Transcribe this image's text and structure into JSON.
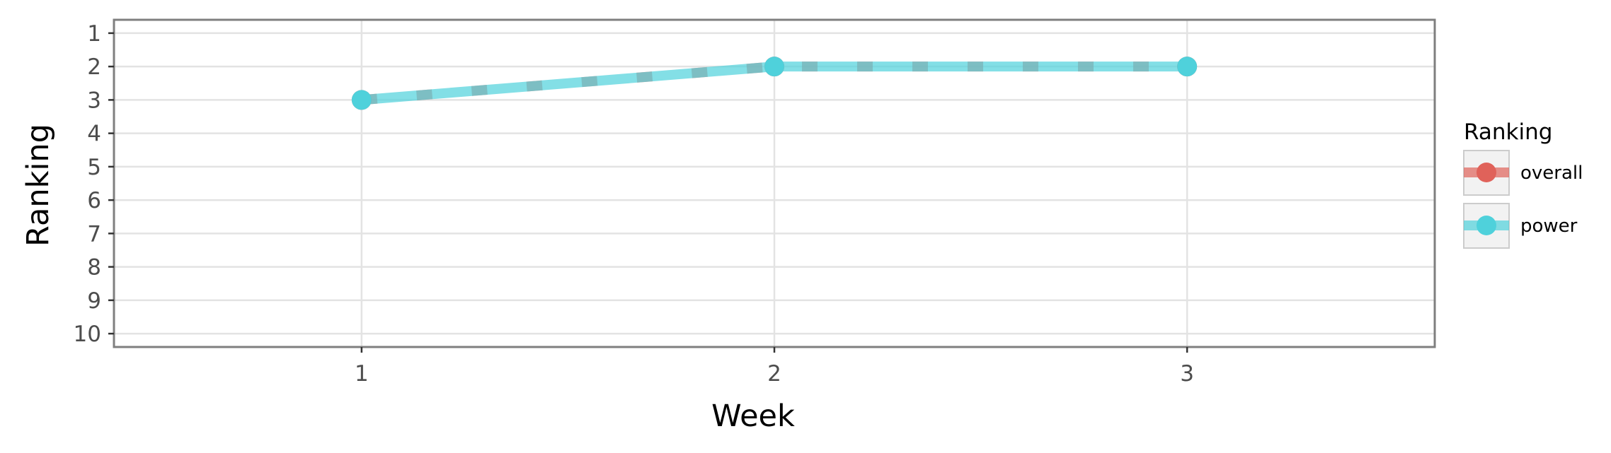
{
  "chart_data": {
    "type": "line",
    "xlabel": "Week",
    "ylabel": "Ranking",
    "x": [
      1,
      2,
      3
    ],
    "xlim": [
      0.4,
      3.6
    ],
    "ylim": [
      10.4,
      0.6
    ],
    "y_reversed": true,
    "x_ticks": [
      "1",
      "2",
      "3"
    ],
    "y_ticks": [
      "1",
      "2",
      "3",
      "4",
      "5",
      "6",
      "7",
      "8",
      "9",
      "10"
    ],
    "grid": true,
    "legend": {
      "title": "Ranking",
      "position": "right"
    },
    "series": [
      {
        "name": "overall",
        "values": [
          3,
          2,
          2
        ],
        "color": "#E0625A",
        "line_style": "dashed"
      },
      {
        "name": "power",
        "values": [
          3,
          2,
          2
        ],
        "color": "#4FD1DB",
        "line_style": "solid"
      }
    ]
  }
}
